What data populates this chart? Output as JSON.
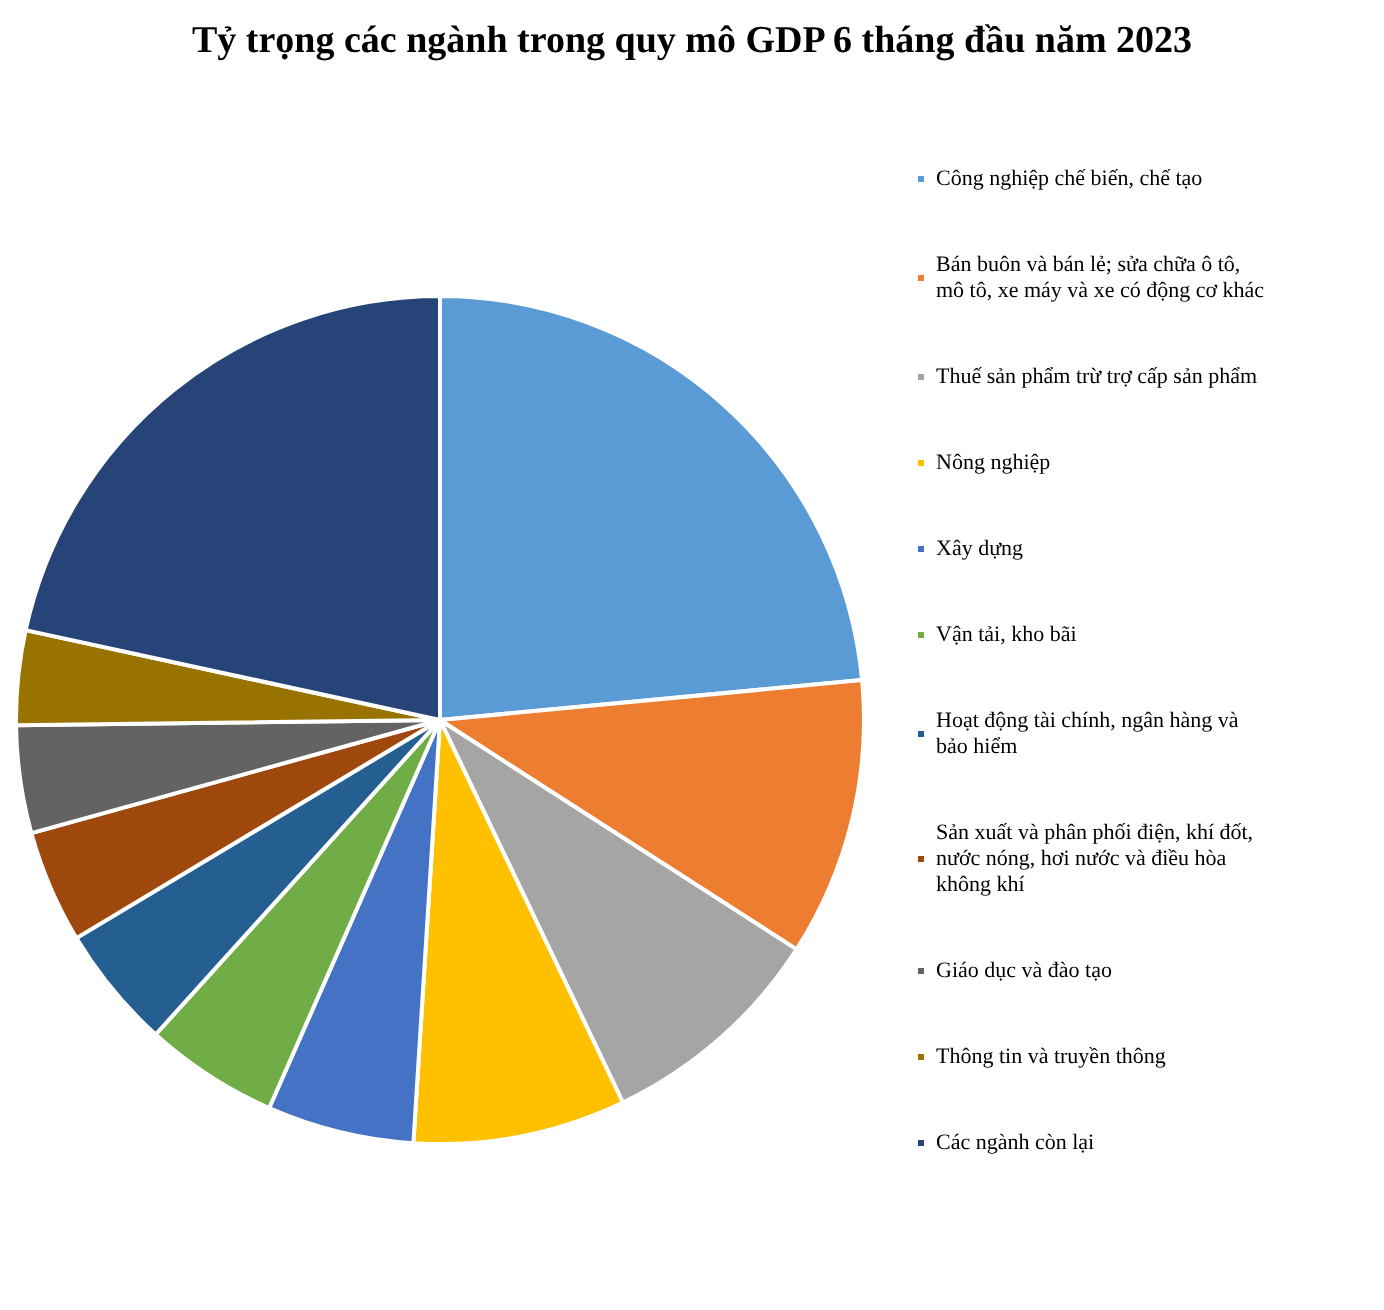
{
  "chart_data": {
    "type": "pie",
    "title": "Tỷ trọng các ngành trong quy mô GDP 6 tháng đầu năm 2023",
    "categories": [
      "Công nghiệp chế biến, chế tạo",
      "Bán buôn và bán lẻ; sửa chữa ô tô, mô tô, xe máy và xe có động cơ khác",
      "Thuế sản phẩm trừ trợ cấp sản phẩm",
      "Nông nghiệp",
      "Xây dựng",
      "Vận tải, kho bãi",
      "Hoạt động tài chính, ngân hàng và bảo hiểm",
      "Sản xuất và phân phối điện, khí đốt, nước nóng, hơi nước và điều hòa không khí",
      "Giáo dục và đào tạo",
      "Thông tin và truyền thông",
      "Các ngành còn lại"
    ],
    "values": [
      23.5,
      10.6,
      8.8,
      8.1,
      5.6,
      5.1,
      4.7,
      4.3,
      4.1,
      3.6,
      21.6
    ],
    "colors": [
      "#5b9bd5",
      "#ed7d31",
      "#a5a5a5",
      "#ffc000",
      "#4472c4",
      "#70ad47",
      "#255e91",
      "#9e480e",
      "#636363",
      "#997300",
      "#264478"
    ],
    "legend": "right"
  }
}
